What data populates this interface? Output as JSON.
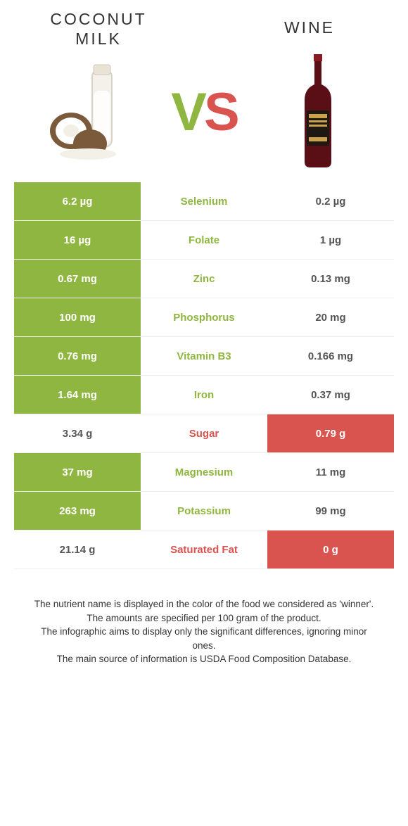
{
  "titles": {
    "left": "COCONUT MILK",
    "right": "WINE"
  },
  "vs": {
    "v": "V",
    "s": "S"
  },
  "colors": {
    "green": "#8fb640",
    "red": "#d9534f",
    "text": "#333333",
    "white": "#ffffff"
  },
  "rows": [
    {
      "nutrient": "Selenium",
      "left": "6.2 µg",
      "right": "0.2 µg",
      "winner": "left",
      "winner_color": "green"
    },
    {
      "nutrient": "Folate",
      "left": "16 µg",
      "right": "1 µg",
      "winner": "left",
      "winner_color": "green"
    },
    {
      "nutrient": "Zinc",
      "left": "0.67 mg",
      "right": "0.13 mg",
      "winner": "left",
      "winner_color": "green"
    },
    {
      "nutrient": "Phosphorus",
      "left": "100 mg",
      "right": "20 mg",
      "winner": "left",
      "winner_color": "green"
    },
    {
      "nutrient": "Vitamin B3",
      "left": "0.76 mg",
      "right": "0.166 mg",
      "winner": "left",
      "winner_color": "green"
    },
    {
      "nutrient": "Iron",
      "left": "1.64 mg",
      "right": "0.37 mg",
      "winner": "left",
      "winner_color": "green"
    },
    {
      "nutrient": "Sugar",
      "left": "3.34 g",
      "right": "0.79 g",
      "winner": "right",
      "winner_color": "red"
    },
    {
      "nutrient": "Magnesium",
      "left": "37 mg",
      "right": "11 mg",
      "winner": "left",
      "winner_color": "green"
    },
    {
      "nutrient": "Potassium",
      "left": "263 mg",
      "right": "99 mg",
      "winner": "left",
      "winner_color": "green"
    },
    {
      "nutrient": "Saturated Fat",
      "left": "21.14 g",
      "right": "0 g",
      "winner": "right",
      "winner_color": "red"
    }
  ],
  "footer": {
    "l1": "The nutrient name is displayed in the color of the food we considered as 'winner'.",
    "l2": "The amounts are specified per 100 gram of the product.",
    "l3": "The infographic aims to display only the significant differences, ignoring minor ones.",
    "l4": "The main source of information is USDA Food Composition Database."
  }
}
